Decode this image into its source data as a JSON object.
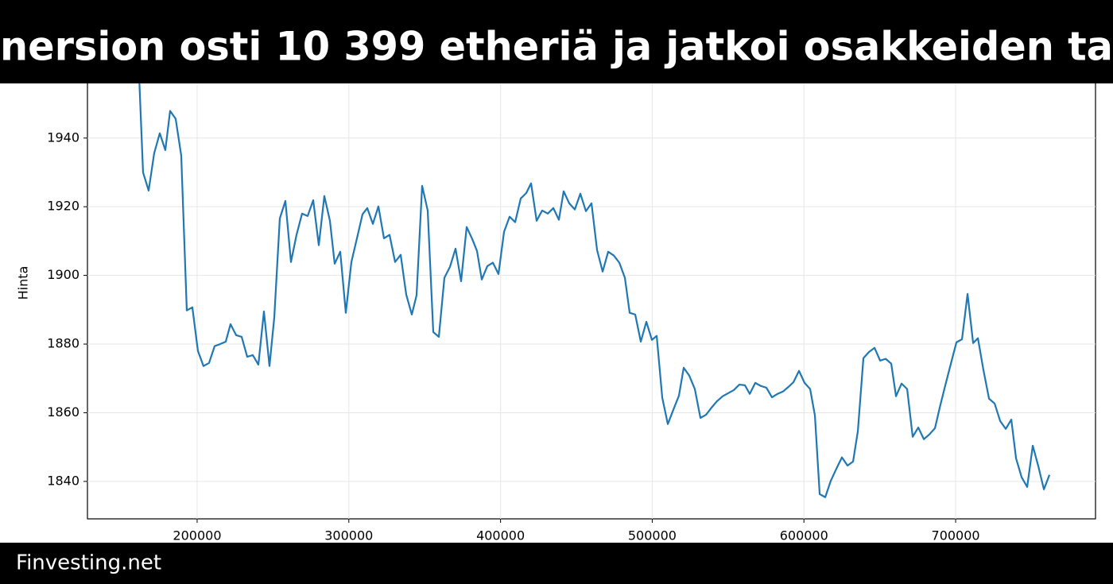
{
  "chart_data": {
    "type": "line",
    "title": "nersion osti 10 399 etheriä ja jatkoi osakkeiden ta",
    "ylabel": "Hinta",
    "color": "#1f77b4",
    "grid": true,
    "xlim": [
      127700,
      792200
    ],
    "ylim": [
      1829.1,
      1961
    ],
    "xticks": [
      200000,
      300000,
      400000,
      500000,
      600000,
      700000
    ],
    "yticks": [
      1840,
      1860,
      1880,
      1900,
      1920,
      1940
    ],
    "x": [
      161740,
      164360,
      168030,
      171700,
      175370,
      179040,
      182180,
      185850,
      189520,
      193190,
      196860,
      200520,
      204190,
      207860,
      211530,
      215200,
      218870,
      222010,
      225680,
      229350,
      233020,
      236690,
      240360,
      244030,
      247690,
      250840,
      254510,
      258180,
      261850,
      265510,
      269180,
      272850,
      276520,
      280190,
      283860,
      287530,
      290670,
      294340,
      298010,
      301680,
      305350,
      309010,
      312160,
      315830,
      319500,
      323170,
      326840,
      330500,
      334170,
      337840,
      341510,
      344650,
      348320,
      351990,
      355660,
      359330,
      363000,
      366670,
      370340,
      374000,
      377670,
      381340,
      384490,
      387630,
      391300,
      394970,
      398640,
      402310,
      405970,
      409640,
      413310,
      416980,
      420120,
      423790,
      427460,
      431130,
      434800,
      438470,
      441610,
      445280,
      448950,
      452620,
      456290,
      459960,
      463630,
      467300,
      470960,
      474630,
      478300,
      481970,
      485120,
      488790,
      492450,
      496120,
      499790,
      502940,
      506600,
      510270,
      513940,
      517610,
      520750,
      524420,
      528090,
      531760,
      535430,
      539100,
      542770,
      546440,
      550100,
      553770,
      557440,
      561110,
      564260,
      567920,
      571590,
      575260,
      578930,
      582600,
      586270,
      589940,
      593080,
      596750,
      600420,
      604090,
      607230,
      610380,
      614050,
      617710,
      621380,
      625050,
      628720,
      632390,
      635530,
      639200,
      642870,
      646540,
      650210,
      653880,
      657550,
      660690,
      664360,
      668030,
      671700,
      675370,
      679040,
      682710,
      686370,
      689520,
      693190,
      696860,
      700520,
      704190,
      707860,
      711530,
      714680,
      718340,
      722010,
      725680,
      729350,
      733020,
      736690,
      739830,
      743500,
      747170,
      750840,
      754510,
      758180,
      761840
    ],
    "values": [
      1958.3,
      1930.0,
      1924.7,
      1935.6,
      1941.4,
      1936.5,
      1947.9,
      1945.6,
      1934.9,
      1889.8,
      1890.7,
      1878.0,
      1873.6,
      1874.5,
      1879.4,
      1880.0,
      1880.7,
      1885.8,
      1882.6,
      1882.1,
      1876.3,
      1876.8,
      1874.0,
      1889.5,
      1873.6,
      1887.7,
      1916.6,
      1921.7,
      1903.9,
      1911.8,
      1918.0,
      1917.3,
      1921.9,
      1908.8,
      1923.1,
      1915.9,
      1903.4,
      1906.9,
      1889.1,
      1903.9,
      1910.8,
      1917.8,
      1919.6,
      1915.0,
      1920.1,
      1910.8,
      1911.8,
      1903.9,
      1906.0,
      1894.4,
      1888.6,
      1894.2,
      1926.1,
      1918.9,
      1883.5,
      1882.1,
      1899.3,
      1902.5,
      1907.8,
      1898.3,
      1914.1,
      1910.6,
      1907.1,
      1898.8,
      1902.7,
      1903.7,
      1900.4,
      1912.7,
      1917.1,
      1915.5,
      1922.4,
      1924.0,
      1926.8,
      1915.9,
      1918.9,
      1918.0,
      1919.6,
      1916.2,
      1924.5,
      1921.0,
      1919.2,
      1923.8,
      1918.7,
      1921.0,
      1907.4,
      1901.1,
      1906.9,
      1905.8,
      1903.7,
      1899.3,
      1889.1,
      1888.6,
      1880.7,
      1886.5,
      1881.2,
      1882.4,
      1864.4,
      1856.7,
      1860.9,
      1865.0,
      1873.1,
      1870.8,
      1866.9,
      1858.5,
      1859.4,
      1861.5,
      1863.4,
      1864.8,
      1865.7,
      1866.6,
      1868.2,
      1868.0,
      1865.5,
      1868.7,
      1867.8,
      1867.3,
      1864.5,
      1865.5,
      1866.2,
      1867.6,
      1868.9,
      1872.2,
      1868.7,
      1866.9,
      1859.2,
      1836.3,
      1835.4,
      1840.2,
      1843.7,
      1847.0,
      1844.6,
      1845.8,
      1854.6,
      1875.9,
      1877.7,
      1878.9,
      1875.2,
      1875.7,
      1874.3,
      1864.8,
      1868.5,
      1866.9,
      1853.0,
      1855.7,
      1852.3,
      1853.7,
      1855.5,
      1861.5,
      1868.0,
      1874.3,
      1880.5,
      1881.4,
      1894.6,
      1880.3,
      1881.7,
      1872.4,
      1864.1,
      1862.7,
      1857.6,
      1855.3,
      1858.0,
      1846.7,
      1841.2,
      1838.4,
      1850.4,
      1844.4,
      1837.7,
      1841.9
    ]
  },
  "footer": "Finvesting.net"
}
